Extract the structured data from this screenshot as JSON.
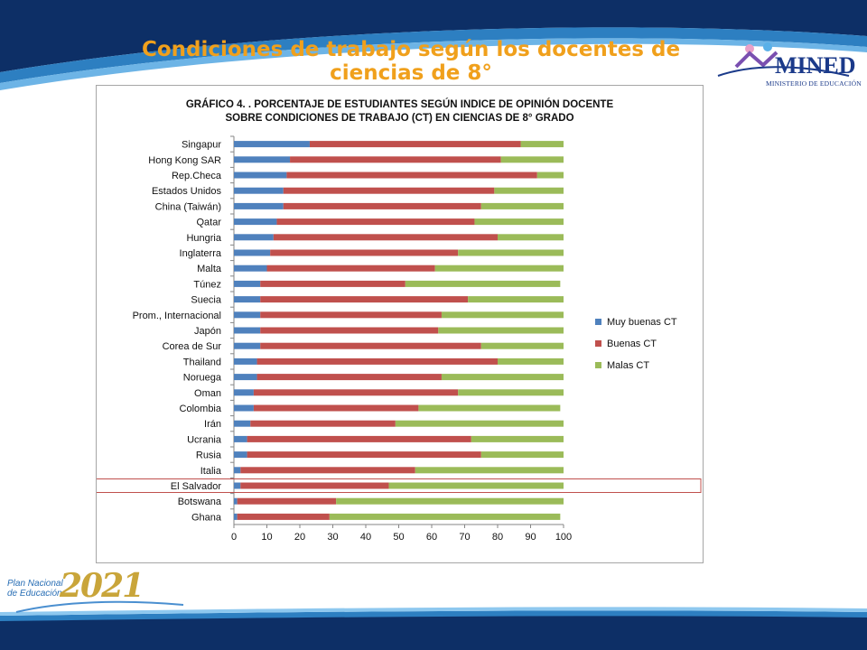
{
  "slide": {
    "title": "Condiciones de trabajo según los docentes de ciencias de 8°",
    "colors": {
      "title": "#f0a01c",
      "band_dark": "#0d2f66",
      "band_light": "#2d7fc1"
    }
  },
  "logos": {
    "mined": {
      "text": "MINED",
      "subtitle": "MINISTERIO DE EDUCACIÓN"
    },
    "plan": {
      "line1": "Plan Nacional",
      "line2": "de Educación",
      "year": "2021"
    }
  },
  "chart_data": {
    "type": "bar",
    "orientation": "horizontal",
    "stacked": true,
    "title_lines": [
      "GRÁFICO 4. . PORCENTAJE DE ESTUDIANTES SEGÚN INDICE DE OPINIÓN DOCENTE",
      "SOBRE CONDICIONES DE TRABAJO (CT) EN CIENCIAS DE 8° GRADO"
    ],
    "categories": [
      "Singapur",
      "Hong Kong SAR",
      "Rep.Checa",
      "Estados Unidos",
      "China (Taiwán)",
      "Qatar",
      "Hungria",
      "Inglaterra",
      "Malta",
      "Túnez",
      "Suecia",
      "Prom., Internacional",
      "Japón",
      "Corea de Sur",
      "Thailand",
      "Noruega",
      "Oman",
      "Colombia",
      "Irán",
      "Ucrania",
      "Rusia",
      "Italia",
      "El Salvador",
      "Botswana",
      "Ghana"
    ],
    "series": [
      {
        "name": "Muy buenas CT",
        "color": "#4f81bd",
        "values": [
          23,
          17,
          16,
          15,
          15,
          13,
          12,
          11,
          10,
          8,
          8,
          8,
          8,
          8,
          7,
          7,
          6,
          6,
          5,
          4,
          4,
          2,
          2,
          1,
          1
        ]
      },
      {
        "name": "Buenas CT",
        "color": "#c0504d",
        "values": [
          64,
          64,
          76,
          64,
          60,
          60,
          68,
          57,
          51,
          44,
          63,
          55,
          54,
          67,
          73,
          56,
          62,
          50,
          44,
          68,
          71,
          53,
          45,
          30,
          28
        ]
      },
      {
        "name": "Malas CT",
        "color": "#9bbb59",
        "values": [
          13,
          19,
          8,
          21,
          25,
          27,
          20,
          32,
          39,
          47,
          29,
          37,
          38,
          25,
          20,
          37,
          32,
          43,
          51,
          28,
          25,
          45,
          53,
          69,
          70
        ]
      }
    ],
    "xlim": [
      0,
      100
    ],
    "xticks": [
      0,
      10,
      20,
      30,
      40,
      50,
      60,
      70,
      80,
      90,
      100
    ],
    "legend_position": "right",
    "highlight_category": "El Salvador",
    "highlight_color": "#c0504d"
  }
}
